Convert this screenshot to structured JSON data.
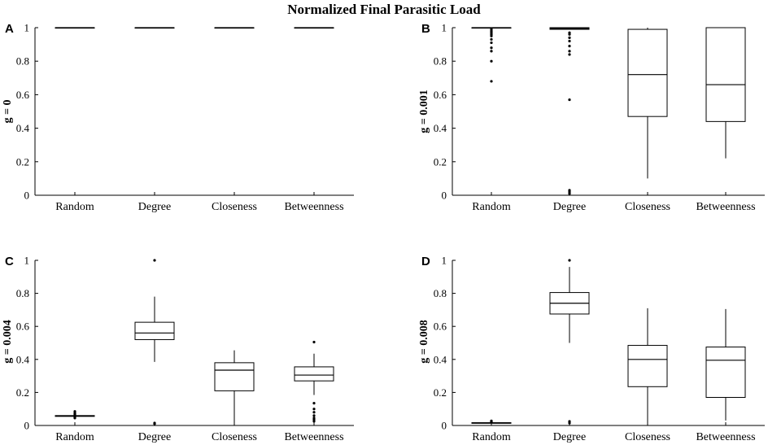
{
  "figure": {
    "title": "Normalized Final Parasitic Load"
  },
  "chart_data": [
    {
      "type": "box",
      "panel": "A",
      "ylabel": "g = 0",
      "xlabel": "",
      "categories": [
        "Random",
        "Degree",
        "Closeness",
        "Betweenness"
      ],
      "ylim": [
        0,
        1
      ],
      "yticks": [
        "0",
        "0.2",
        "0.4",
        "0.6",
        "0.8",
        "1"
      ],
      "boxes": [
        {
          "category": "Random",
          "min": 1,
          "q1": 1,
          "median": 1,
          "q3": 1,
          "max": 1,
          "outliers": []
        },
        {
          "category": "Degree",
          "min": 1,
          "q1": 1,
          "median": 1,
          "q3": 1,
          "max": 1,
          "outliers": []
        },
        {
          "category": "Closeness",
          "min": 1,
          "q1": 1,
          "median": 1,
          "q3": 1,
          "max": 1,
          "outliers": []
        },
        {
          "category": "Betweenness",
          "min": 1,
          "q1": 1,
          "median": 1,
          "q3": 1,
          "max": 1,
          "outliers": []
        }
      ]
    },
    {
      "type": "box",
      "panel": "B",
      "ylabel": "g = 0.001",
      "xlabel": "",
      "categories": [
        "Random",
        "Degree",
        "Closeness",
        "Betweenness"
      ],
      "ylim": [
        0,
        1
      ],
      "yticks": [
        "0",
        "0.2",
        "0.4",
        "0.6",
        "0.8",
        "1"
      ],
      "boxes": [
        {
          "category": "Random",
          "min": 1,
          "q1": 1,
          "median": 1,
          "q3": 1,
          "max": 1,
          "outliers": [
            0.99,
            0.98,
            0.97,
            0.96,
            0.95,
            0.93,
            0.91,
            0.88,
            0.86,
            0.8,
            0.68
          ]
        },
        {
          "category": "Degree",
          "min": 0.99,
          "q1": 0.99,
          "median": 0.995,
          "q3": 1,
          "max": 1,
          "outliers": [
            0.97,
            0.96,
            0.94,
            0.92,
            0.89,
            0.86,
            0.84,
            0.57,
            0.03,
            0.02,
            0.01
          ]
        },
        {
          "category": "Closeness",
          "min": 0.1,
          "q1": 0.47,
          "median": 0.72,
          "q3": 0.99,
          "max": 1,
          "outliers": []
        },
        {
          "category": "Betweenness",
          "min": 0.22,
          "q1": 0.44,
          "median": 0.66,
          "q3": 1,
          "max": 1,
          "outliers": []
        }
      ]
    },
    {
      "type": "box",
      "panel": "C",
      "ylabel": "g = 0.004",
      "xlabel": "",
      "categories": [
        "Random",
        "Degree",
        "Closeness",
        "Betweenness"
      ],
      "ylim": [
        0,
        1
      ],
      "yticks": [
        "0",
        "0.2",
        "0.4",
        "0.6",
        "0.8",
        "1"
      ],
      "boxes": [
        {
          "category": "Random",
          "min": 0.055,
          "q1": 0.055,
          "median": 0.058,
          "q3": 0.06,
          "max": 0.062,
          "outliers": [
            0.085,
            0.075,
            0.07,
            0.065,
            0.05,
            0.045
          ]
        },
        {
          "category": "Degree",
          "min": 0.385,
          "q1": 0.52,
          "median": 0.56,
          "q3": 0.625,
          "max": 0.78,
          "outliers": [
            1.0,
            0.015,
            0.01
          ]
        },
        {
          "category": "Closeness",
          "min": 0.02,
          "q1": 0.21,
          "median": 0.335,
          "q3": 0.38,
          "max": 0.455,
          "outliers": []
        },
        {
          "category": "Betweenness",
          "min": 0.185,
          "q1": 0.27,
          "median": 0.305,
          "q3": 0.355,
          "max": 0.435,
          "outliers": [
            0.505,
            0.135,
            0.1,
            0.08,
            0.06,
            0.045,
            0.035,
            0.025
          ]
        }
      ]
    },
    {
      "type": "box",
      "panel": "D",
      "ylabel": "g = 0.008",
      "xlabel": "",
      "categories": [
        "Random",
        "Degree",
        "Closeness",
        "Betweenness"
      ],
      "ylim": [
        0,
        1
      ],
      "yticks": [
        "0",
        "0.2",
        "0.4",
        "0.6",
        "0.8",
        "1"
      ],
      "boxes": [
        {
          "category": "Random",
          "min": 0.012,
          "q1": 0.013,
          "median": 0.015,
          "q3": 0.017,
          "max": 0.018,
          "outliers": [
            0.028,
            0.022,
            0.02
          ]
        },
        {
          "category": "Degree",
          "min": 0.5,
          "q1": 0.675,
          "median": 0.74,
          "q3": 0.805,
          "max": 0.96,
          "outliers": [
            1.0,
            0.025,
            0.015
          ]
        },
        {
          "category": "Closeness",
          "min": 0.0,
          "q1": 0.235,
          "median": 0.4,
          "q3": 0.485,
          "max": 0.71,
          "outliers": []
        },
        {
          "category": "Betweenness",
          "min": 0.03,
          "q1": 0.17,
          "median": 0.395,
          "q3": 0.475,
          "max": 0.705,
          "outliers": []
        }
      ]
    }
  ]
}
